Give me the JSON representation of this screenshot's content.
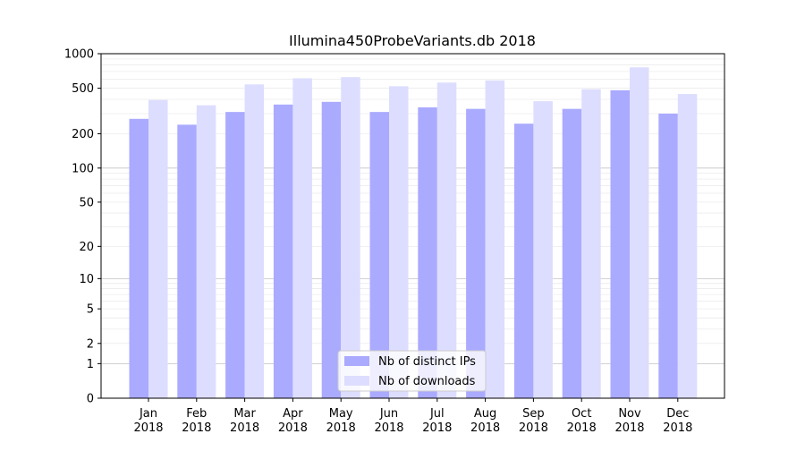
{
  "chart_data": {
    "type": "bar",
    "title": "Illumina450ProbeVariants.db 2018",
    "xlabel": "",
    "ylabel": "",
    "scale": "log1p",
    "ylim": [
      0,
      1000
    ],
    "yticks": [
      0,
      1,
      2,
      5,
      10,
      20,
      50,
      100,
      200,
      500,
      1000
    ],
    "categories": [
      [
        "Jan",
        "2018"
      ],
      [
        "Feb",
        "2018"
      ],
      [
        "Mar",
        "2018"
      ],
      [
        "Apr",
        "2018"
      ],
      [
        "May",
        "2018"
      ],
      [
        "Jun",
        "2018"
      ],
      [
        "Jul",
        "2018"
      ],
      [
        "Aug",
        "2018"
      ],
      [
        "Sep",
        "2018"
      ],
      [
        "Oct",
        "2018"
      ],
      [
        "Nov",
        "2018"
      ],
      [
        "Dec",
        "2018"
      ]
    ],
    "series": [
      {
        "name": "Nb of distinct IPs",
        "color": "#aaaaff",
        "values": [
          270,
          240,
          310,
          360,
          380,
          310,
          340,
          330,
          245,
          330,
          480,
          300
        ]
      },
      {
        "name": "Nb of downloads",
        "color": "#ddddff",
        "values": [
          395,
          355,
          540,
          610,
          625,
          520,
          560,
          585,
          385,
          490,
          760,
          445
        ]
      }
    ],
    "grid": true,
    "legend": "bottom-center"
  }
}
